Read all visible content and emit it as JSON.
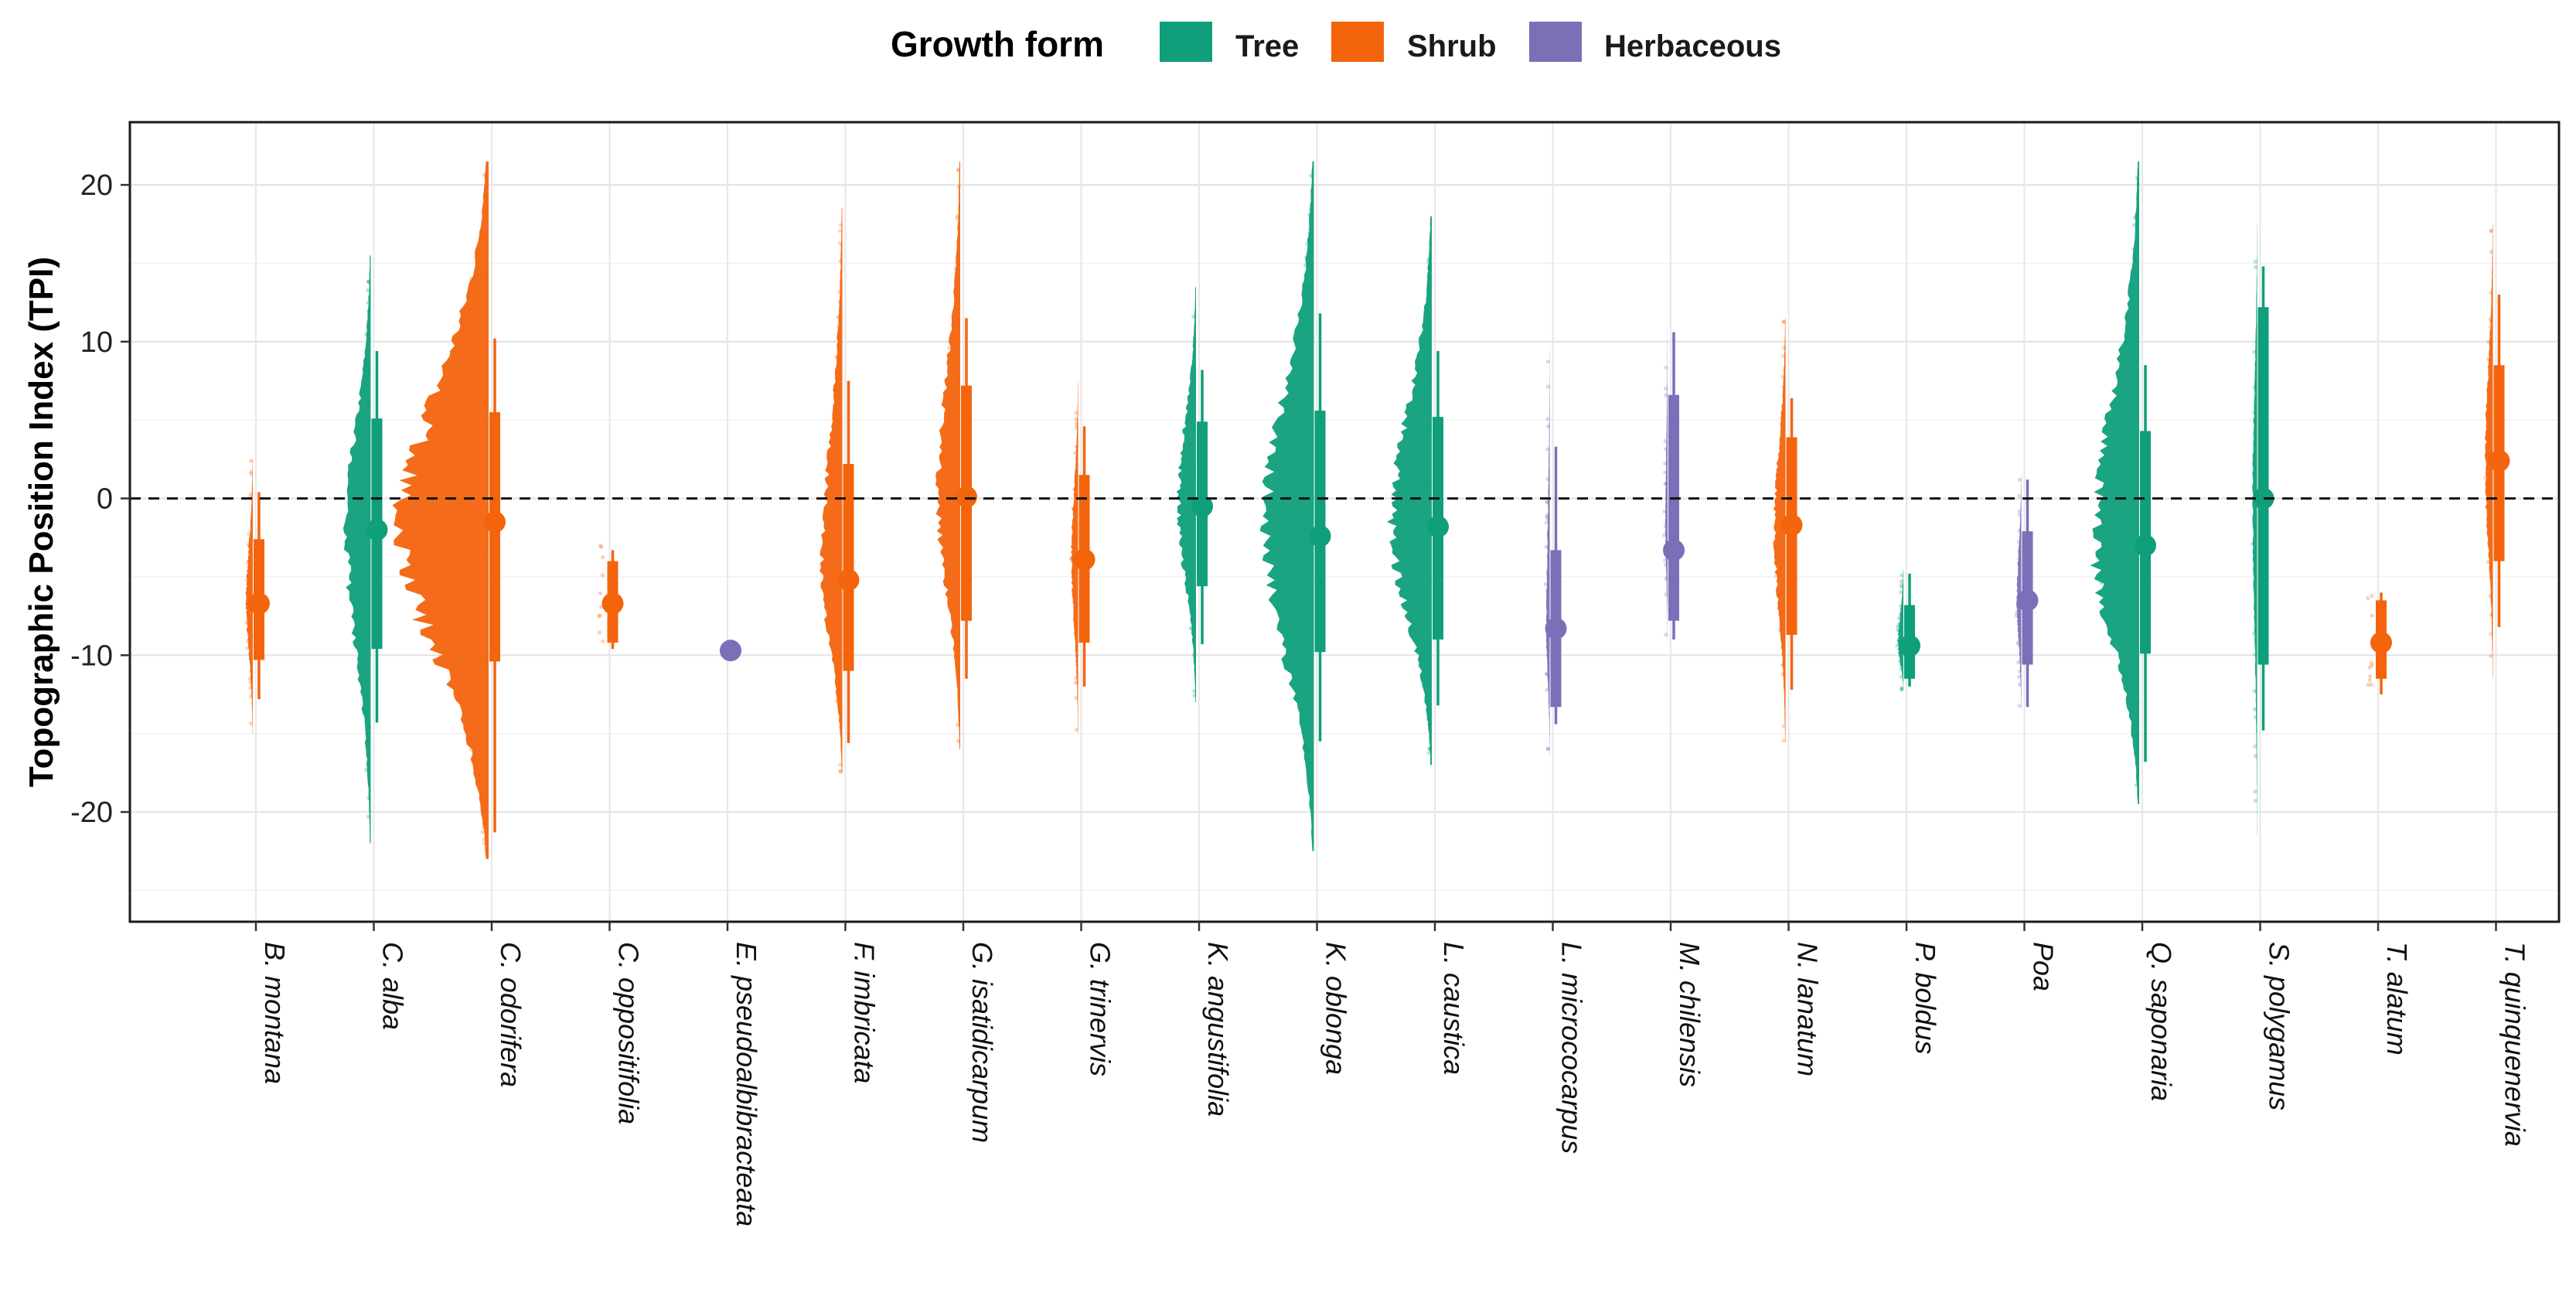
{
  "legend": {
    "title": "Growth form",
    "items": [
      {
        "key": "tree",
        "label": "Tree",
        "color": "#0f9f7a"
      },
      {
        "key": "shrub",
        "label": "Shrub",
        "color": "#f3640d"
      },
      {
        "key": "herb",
        "label": "Herbaceous",
        "color": "#7b6fb8"
      }
    ]
  },
  "chart_data": {
    "type": "violin-raincloud",
    "title": "",
    "xlabel": "",
    "ylabel": "Topographic Position Index (TPI)",
    "ylim": [
      -27,
      24
    ],
    "yticks": [
      -20,
      -10,
      0,
      10,
      20
    ],
    "reference_line": 0,
    "grid": true,
    "legend_position": "top",
    "categories": [
      {
        "label": "B. montana",
        "form": "shrub",
        "median": -6.7,
        "q1": -10.3,
        "q3": -2.6,
        "min": -12.8,
        "max": 0.4,
        "ymin": -15,
        "ymax": 2.5,
        "width": 0.06
      },
      {
        "label": "C. alba",
        "form": "tree",
        "median": -2.0,
        "q1": -9.6,
        "q3": 5.1,
        "min": -14.3,
        "max": 9.4,
        "ymin": -22,
        "ymax": 15.5,
        "width": 0.22
      },
      {
        "label": "C. odorifera",
        "form": "shrub",
        "median": -1.5,
        "q1": -10.4,
        "q3": 5.5,
        "min": -21.3,
        "max": 10.2,
        "ymin": -23,
        "ymax": 21.5,
        "width": 0.78
      },
      {
        "label": "C. oppositifolia",
        "form": "shrub",
        "median": -6.7,
        "q1": -9.2,
        "q3": -4.0,
        "min": -9.6,
        "max": -3.3,
        "ymin": -9.8,
        "ymax": -3.0,
        "width": 0.0
      },
      {
        "label": "E. pseudoalbibracteata",
        "form": "herb",
        "median": -9.7,
        "q1": -9.7,
        "q3": -9.7,
        "min": -9.7,
        "max": -9.7,
        "ymin": -9.7,
        "ymax": -9.7,
        "width": 0.0
      },
      {
        "label": "F. imbricata",
        "form": "shrub",
        "median": -5.2,
        "q1": -11.0,
        "q3": 2.2,
        "min": -15.6,
        "max": 7.5,
        "ymin": -17.5,
        "ymax": 18.5,
        "width": 0.18
      },
      {
        "label": "G. isatidicarpum",
        "form": "shrub",
        "median": 0.1,
        "q1": -7.8,
        "q3": 7.2,
        "min": -11.5,
        "max": 11.5,
        "ymin": -16,
        "ymax": 21.5,
        "width": 0.2
      },
      {
        "label": "G. trinervis",
        "form": "shrub",
        "median": -3.9,
        "q1": -9.2,
        "q3": 1.5,
        "min": -12.0,
        "max": 4.6,
        "ymin": -15,
        "ymax": 7.5,
        "width": 0.06
      },
      {
        "label": "K. angustifolia",
        "form": "tree",
        "median": -0.5,
        "q1": -5.6,
        "q3": 4.9,
        "min": -9.3,
        "max": 8.2,
        "ymin": -13,
        "ymax": 13.5,
        "width": 0.16
      },
      {
        "label": "K. oblonga",
        "form": "tree",
        "median": -2.4,
        "q1": -9.8,
        "q3": 5.6,
        "min": -15.5,
        "max": 11.8,
        "ymin": -22.5,
        "ymax": 21.5,
        "width": 0.44
      },
      {
        "label": "L. caustica",
        "form": "tree",
        "median": -1.8,
        "q1": -9.0,
        "q3": 5.2,
        "min": -13.2,
        "max": 9.4,
        "ymin": -17,
        "ymax": 18,
        "width": 0.36
      },
      {
        "label": "L. micrococarpus",
        "form": "herb",
        "median": -8.3,
        "q1": -13.3,
        "q3": -3.3,
        "min": -14.4,
        "max": 3.3,
        "ymin": -16.5,
        "ymax": 9.5,
        "width": 0.03
      },
      {
        "label": "M. chilensis",
        "form": "herb",
        "median": -3.3,
        "q1": -7.8,
        "q3": 6.6,
        "min": -9.0,
        "max": 10.6,
        "ymin": -9.2,
        "ymax": 11,
        "width": 0.02
      },
      {
        "label": "N. lanatum",
        "form": "shrub",
        "median": -1.7,
        "q1": -8.7,
        "q3": 3.9,
        "min": -12.2,
        "max": 6.4,
        "ymin": -15.5,
        "ymax": 11.5,
        "width": 0.1
      },
      {
        "label": "P. boldus",
        "form": "tree",
        "median": -9.4,
        "q1": -11.5,
        "q3": -6.8,
        "min": -12.0,
        "max": -4.8,
        "ymin": -12.2,
        "ymax": -4.5,
        "width": 0.05
      },
      {
        "label": "Poa",
        "form": "herb",
        "median": -6.5,
        "q1": -10.6,
        "q3": -2.1,
        "min": -13.3,
        "max": 1.2,
        "ymin": -13.5,
        "ymax": 1.5,
        "width": 0.04
      },
      {
        "label": "Q. saponaria",
        "form": "tree",
        "median": -3.0,
        "q1": -9.9,
        "q3": 4.3,
        "min": -16.8,
        "max": 8.5,
        "ymin": -19.5,
        "ymax": 21.5,
        "width": 0.4
      },
      {
        "label": "S. polygamus",
        "form": "tree",
        "median": 0.0,
        "q1": -10.6,
        "q3": 12.2,
        "min": -14.8,
        "max": 14.8,
        "ymin": -21.5,
        "ymax": 17.5,
        "width": 0.04
      },
      {
        "label": "T. alatum",
        "form": "shrub",
        "median": -9.2,
        "q1": -11.5,
        "q3": -6.5,
        "min": -12.5,
        "max": -6.0,
        "ymin": -12.6,
        "ymax": -6.0,
        "width": 0.0
      },
      {
        "label": "T. quinquenervia",
        "form": "shrub",
        "median": 2.4,
        "q1": -4.0,
        "q3": 8.5,
        "min": -8.2,
        "max": 13.0,
        "ymin": -11.5,
        "ymax": 17.5,
        "width": 0.07
      }
    ]
  }
}
